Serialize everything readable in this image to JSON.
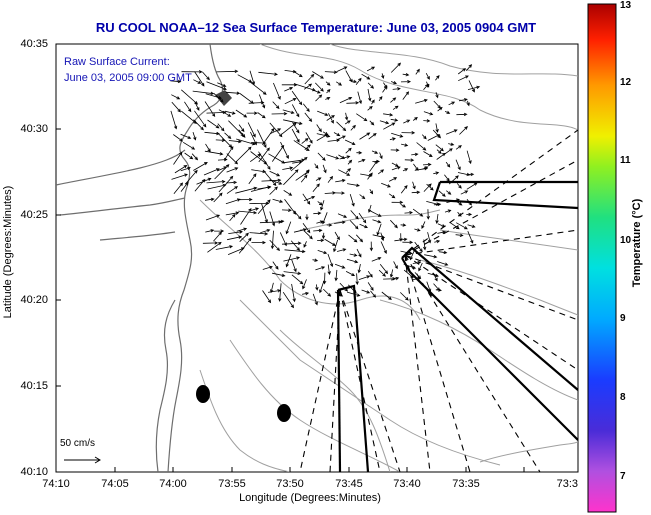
{
  "title": "RU COOL  NOAA–12  Sea Surface Temperature:  June 03, 2005 0904 GMT",
  "legend": {
    "line1": "Raw Surface Current:",
    "line2": "June 03, 2005 09:00 GMT"
  },
  "axes": {
    "xlabel": "Longitude (Degrees:Minutes)",
    "ylabel": "Latitude (Degrees:Minutes)",
    "xticks": [
      "74:10",
      "74:05",
      "74:00",
      "73:55",
      "73:50",
      "73:45",
      "73:40",
      "73:35",
      "73:3"
    ],
    "yticks": [
      "40:35",
      "40:30",
      "40:25",
      "40:20",
      "40:15",
      "40:10"
    ]
  },
  "scale": {
    "label": "50 cm/s"
  },
  "colorbar": {
    "label": "Temperature (°C)",
    "ticks": [
      "13",
      "12",
      "11",
      "10",
      "9",
      "8",
      "7"
    ],
    "min": 6.5,
    "max": 13
  },
  "colors": {
    "title": "#0000aa",
    "legend": "#1515b5",
    "land": "#7a7a7a",
    "depth": "#9a9a9a"
  }
}
